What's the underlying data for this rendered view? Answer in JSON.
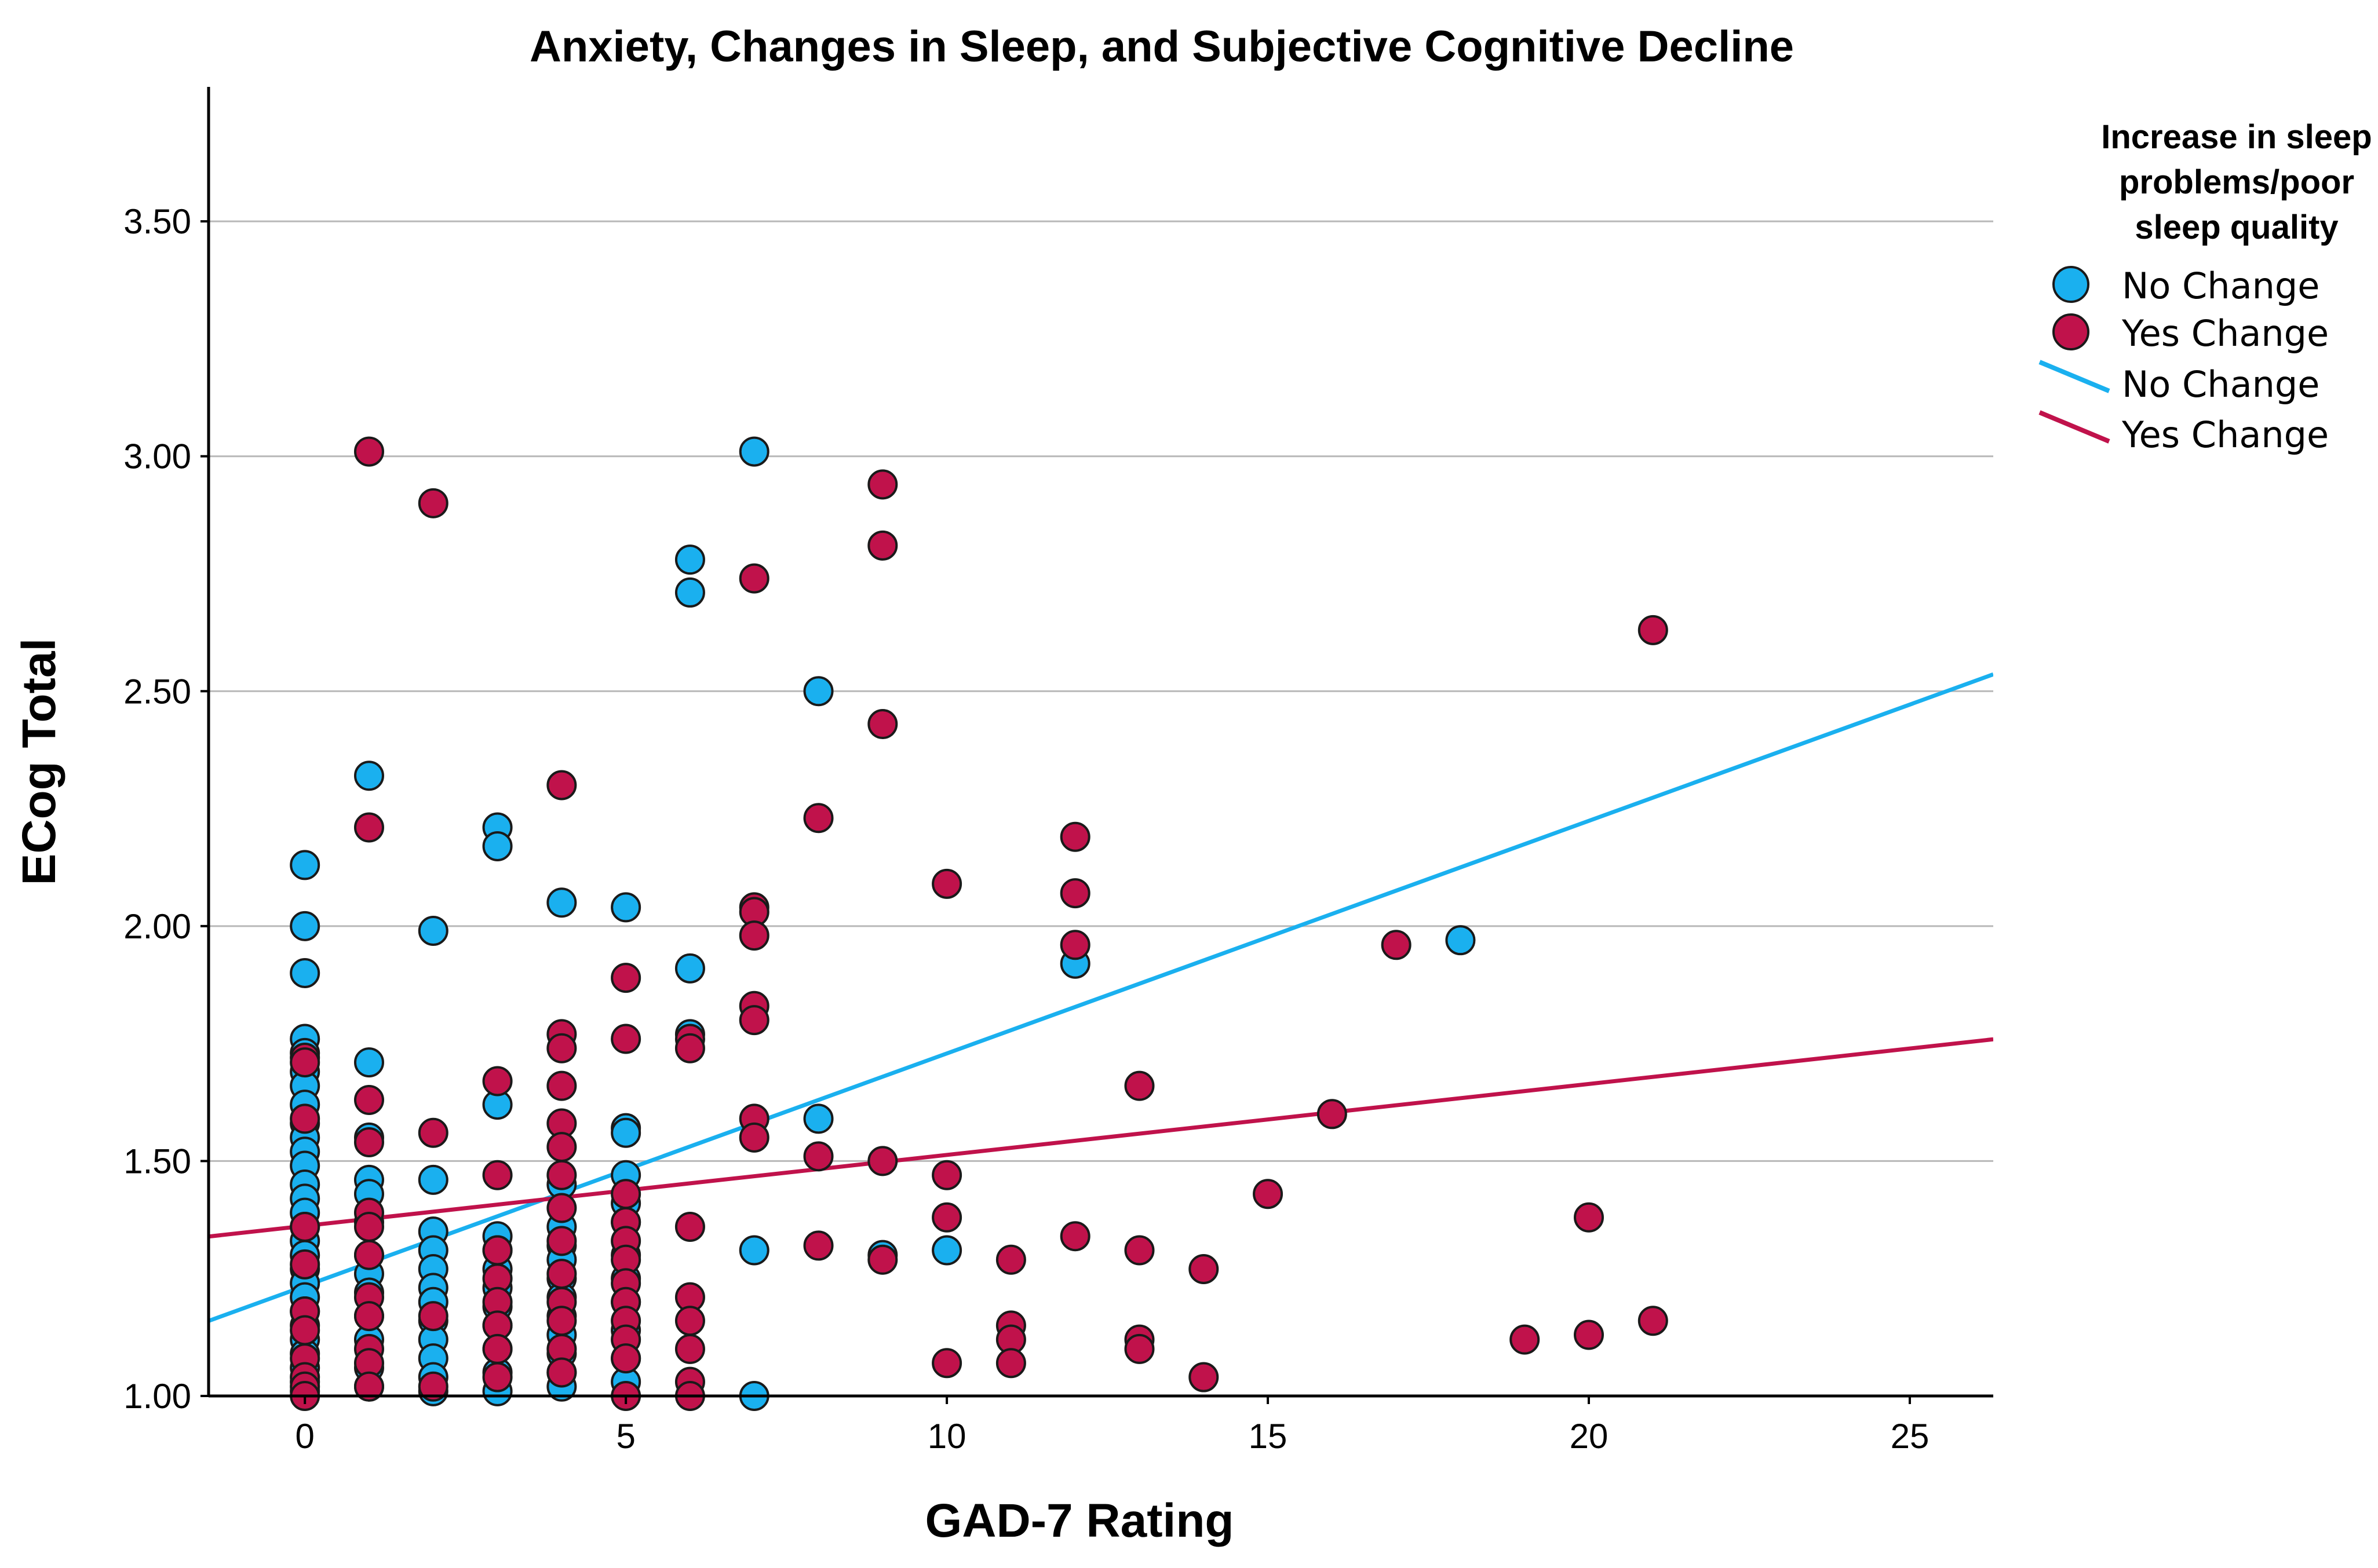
{
  "chart_data": {
    "type": "scatter",
    "title": "Anxiety, Changes in Sleep, and Subjective Cognitive Decline",
    "xlabel": "GAD-7 Rating",
    "ylabel": "ECog Total",
    "xlim": [
      -1.5,
      26.3
    ],
    "ylim": [
      1.0,
      3.78
    ],
    "x_ticks": [
      0,
      5,
      10,
      15,
      20,
      25
    ],
    "x_tick_labels": [
      "0",
      "5",
      "10",
      "15",
      "20",
      "25"
    ],
    "y_ticks": [
      1.0,
      1.5,
      2.0,
      2.5,
      3.0,
      3.5
    ],
    "y_tick_labels": [
      "1.00",
      "1.50",
      "2.00",
      "2.50",
      "3.00",
      "3.50"
    ],
    "grid": "horizontal",
    "legend_position": "right",
    "legend_title": [
      "Increase in sleep",
      "problems/poor",
      "sleep quality"
    ],
    "series": [
      {
        "name": "No Change",
        "color": "#1ab0ef",
        "points": [
          [
            0,
            2.13
          ],
          [
            0,
            2.0
          ],
          [
            0,
            1.9
          ],
          [
            0,
            1.76
          ],
          [
            0,
            1.73
          ],
          [
            0,
            1.69
          ],
          [
            0,
            1.66
          ],
          [
            0,
            1.62
          ],
          [
            0,
            1.58
          ],
          [
            0,
            1.55
          ],
          [
            0,
            1.52
          ],
          [
            0,
            1.49
          ],
          [
            0,
            1.45
          ],
          [
            0,
            1.42
          ],
          [
            0,
            1.39
          ],
          [
            0,
            1.36
          ],
          [
            0,
            1.33
          ],
          [
            0,
            1.3
          ],
          [
            0,
            1.27
          ],
          [
            0,
            1.24
          ],
          [
            0,
            1.21
          ],
          [
            0,
            1.18
          ],
          [
            0,
            1.15
          ],
          [
            0,
            1.12
          ],
          [
            0,
            1.09
          ],
          [
            0,
            1.06
          ],
          [
            0,
            1.03
          ],
          [
            0,
            1.01
          ],
          [
            1,
            2.32
          ],
          [
            1,
            1.71
          ],
          [
            1,
            1.55
          ],
          [
            1,
            1.46
          ],
          [
            1,
            1.43
          ],
          [
            1,
            1.37
          ],
          [
            1,
            1.3
          ],
          [
            1,
            1.26
          ],
          [
            1,
            1.22
          ],
          [
            1,
            1.17
          ],
          [
            1,
            1.12
          ],
          [
            1,
            1.06
          ],
          [
            1,
            1.02
          ],
          [
            2,
            1.99
          ],
          [
            2,
            1.46
          ],
          [
            2,
            1.35
          ],
          [
            2,
            1.31
          ],
          [
            2,
            1.27
          ],
          [
            2,
            1.23
          ],
          [
            2,
            1.2
          ],
          [
            2,
            1.16
          ],
          [
            2,
            1.12
          ],
          [
            2,
            1.08
          ],
          [
            2,
            1.04
          ],
          [
            2,
            1.01
          ],
          [
            3,
            2.21
          ],
          [
            3,
            2.17
          ],
          [
            3,
            1.62
          ],
          [
            3,
            1.34
          ],
          [
            3,
            1.31
          ],
          [
            3,
            1.27
          ],
          [
            3,
            1.23
          ],
          [
            3,
            1.19
          ],
          [
            3,
            1.15
          ],
          [
            3,
            1.1
          ],
          [
            3,
            1.05
          ],
          [
            3,
            1.01
          ],
          [
            4,
            2.05
          ],
          [
            4,
            1.45
          ],
          [
            4,
            1.36
          ],
          [
            4,
            1.32
          ],
          [
            4,
            1.29
          ],
          [
            4,
            1.25
          ],
          [
            4,
            1.21
          ],
          [
            4,
            1.17
          ],
          [
            4,
            1.13
          ],
          [
            4,
            1.09
          ],
          [
            4,
            1.05
          ],
          [
            4,
            1.02
          ],
          [
            5,
            2.04
          ],
          [
            5,
            1.57
          ],
          [
            5,
            1.56
          ],
          [
            5,
            1.47
          ],
          [
            5,
            1.41
          ],
          [
            5,
            1.37
          ],
          [
            5,
            1.3
          ],
          [
            5,
            1.25
          ],
          [
            5,
            1.2
          ],
          [
            5,
            1.14
          ],
          [
            5,
            1.08
          ],
          [
            5,
            1.03
          ],
          [
            6,
            2.78
          ],
          [
            6,
            2.71
          ],
          [
            6,
            1.91
          ],
          [
            6,
            1.77
          ],
          [
            7,
            3.01
          ],
          [
            7,
            1.31
          ],
          [
            7,
            1.0
          ],
          [
            8,
            2.5
          ],
          [
            8,
            1.59
          ],
          [
            9,
            1.3
          ],
          [
            10,
            1.31
          ],
          [
            12,
            1.92
          ],
          [
            18,
            1.97
          ]
        ]
      },
      {
        "name": "Yes Change",
        "color": "#c0124b",
        "points": [
          [
            0,
            1.72
          ],
          [
            0,
            1.71
          ],
          [
            0,
            1.59
          ],
          [
            0,
            1.36
          ],
          [
            0,
            1.28
          ],
          [
            0,
            1.18
          ],
          [
            0,
            1.14
          ],
          [
            0,
            1.08
          ],
          [
            0,
            1.04
          ],
          [
            0,
            1.02
          ],
          [
            0,
            1.0
          ],
          [
            1,
            3.01
          ],
          [
            1,
            2.21
          ],
          [
            1,
            1.63
          ],
          [
            1,
            1.54
          ],
          [
            1,
            1.39
          ],
          [
            1,
            1.36
          ],
          [
            1,
            1.3
          ],
          [
            1,
            1.21
          ],
          [
            1,
            1.17
          ],
          [
            1,
            1.1
          ],
          [
            1,
            1.07
          ],
          [
            1,
            1.02
          ],
          [
            2,
            2.9
          ],
          [
            2,
            1.56
          ],
          [
            2,
            1.17
          ],
          [
            2,
            1.02
          ],
          [
            3,
            1.67
          ],
          [
            3,
            1.47
          ],
          [
            3,
            1.31
          ],
          [
            3,
            1.25
          ],
          [
            3,
            1.2
          ],
          [
            3,
            1.15
          ],
          [
            3,
            1.1
          ],
          [
            3,
            1.04
          ],
          [
            4,
            2.3
          ],
          [
            4,
            1.77
          ],
          [
            4,
            1.74
          ],
          [
            4,
            1.66
          ],
          [
            4,
            1.58
          ],
          [
            4,
            1.53
          ],
          [
            4,
            1.47
          ],
          [
            4,
            1.4
          ],
          [
            4,
            1.33
          ],
          [
            4,
            1.26
          ],
          [
            4,
            1.2
          ],
          [
            4,
            1.16
          ],
          [
            4,
            1.1
          ],
          [
            4,
            1.05
          ],
          [
            5,
            1.89
          ],
          [
            5,
            1.76
          ],
          [
            5,
            1.43
          ],
          [
            5,
            1.37
          ],
          [
            5,
            1.33
          ],
          [
            5,
            1.29
          ],
          [
            5,
            1.24
          ],
          [
            5,
            1.2
          ],
          [
            5,
            1.16
          ],
          [
            5,
            1.12
          ],
          [
            5,
            1.08
          ],
          [
            5,
            1.0
          ],
          [
            6,
            1.76
          ],
          [
            6,
            1.74
          ],
          [
            6,
            1.36
          ],
          [
            6,
            1.21
          ],
          [
            6,
            1.16
          ],
          [
            6,
            1.1
          ],
          [
            6,
            1.03
          ],
          [
            6,
            1.0
          ],
          [
            7,
            2.74
          ],
          [
            7,
            2.04
          ],
          [
            7,
            2.03
          ],
          [
            7,
            1.98
          ],
          [
            7,
            1.83
          ],
          [
            7,
            1.8
          ],
          [
            7,
            1.59
          ],
          [
            7,
            1.55
          ],
          [
            8,
            2.23
          ],
          [
            8,
            1.51
          ],
          [
            8,
            1.32
          ],
          [
            9,
            2.94
          ],
          [
            9,
            2.81
          ],
          [
            9,
            2.43
          ],
          [
            9,
            1.5
          ],
          [
            9,
            1.29
          ],
          [
            10,
            2.09
          ],
          [
            10,
            1.47
          ],
          [
            10,
            1.38
          ],
          [
            10,
            1.07
          ],
          [
            11,
            1.29
          ],
          [
            11,
            1.15
          ],
          [
            11,
            1.12
          ],
          [
            11,
            1.07
          ],
          [
            12,
            2.19
          ],
          [
            12,
            2.07
          ],
          [
            12,
            1.96
          ],
          [
            12,
            1.34
          ],
          [
            13,
            1.66
          ],
          [
            13,
            1.31
          ],
          [
            13,
            1.12
          ],
          [
            13,
            1.1
          ],
          [
            14,
            1.27
          ],
          [
            14,
            1.04
          ],
          [
            15,
            1.43
          ],
          [
            16,
            1.6
          ],
          [
            17,
            1.96
          ],
          [
            19,
            1.12
          ],
          [
            20,
            1.38
          ],
          [
            20,
            1.13
          ],
          [
            21,
            2.63
          ],
          [
            21,
            1.16
          ]
        ]
      }
    ],
    "fit_lines": [
      {
        "name": "No Change",
        "color": "#1ab0ef",
        "intercept": 1.234,
        "slope": 0.0495
      },
      {
        "name": "Yes Change",
        "color": "#c0124b",
        "intercept": 1.362,
        "slope": 0.0151
      }
    ]
  }
}
